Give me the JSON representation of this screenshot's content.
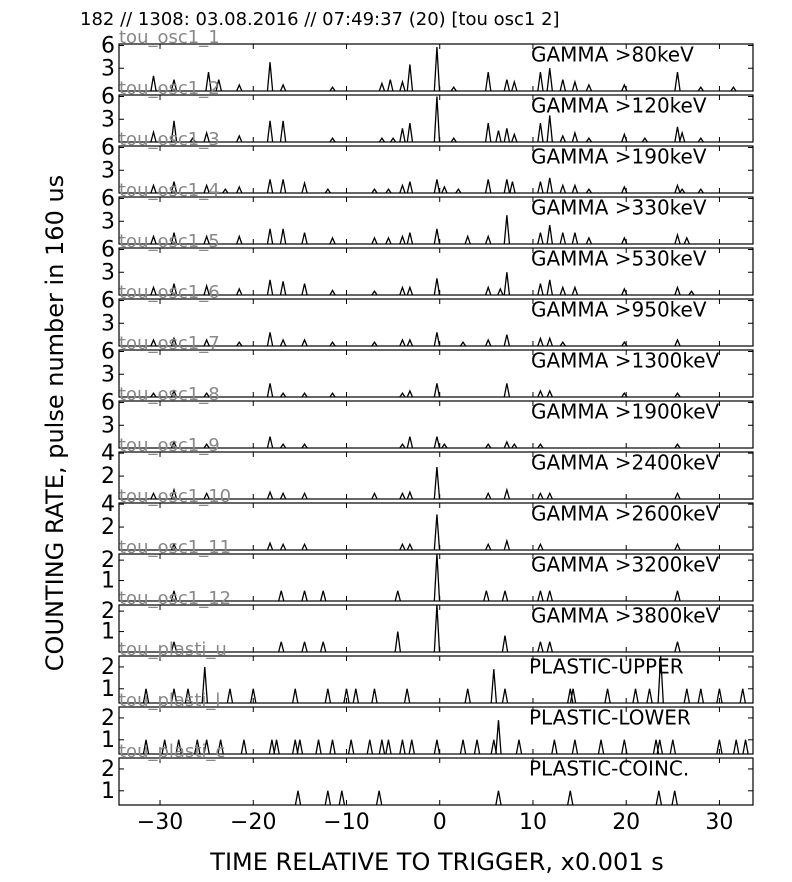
{
  "header": "182 // 1308:   03.08.2016 // 07:49:37 (20)  [tou osc1 2]",
  "y_label": "COUNTING RATE,   pulse number in 160 us",
  "x_label": "TIME RELATIVE TO TRIGGER,   x0.001 s",
  "chart_data": [
    {
      "type": "spike",
      "id": "tou_osc1_1",
      "title": "GAMMA >80keV",
      "xlim": [
        -34.4,
        33.6
      ],
      "xticks": [
        -30,
        -20,
        -10,
        0,
        10,
        20,
        30
      ],
      "ylim": [
        0,
        6.2
      ],
      "yticks": [
        3,
        6
      ],
      "x": [
        -30.7,
        -28.5,
        -24.8,
        -23.7,
        -21.5,
        -18.2,
        -16.8,
        -11.5,
        -6.2,
        -5.3,
        -4,
        -3.2,
        -0.3,
        1.5,
        5.2,
        7.2,
        8,
        10.8,
        11.8,
        13.2,
        14.5,
        16,
        19.8,
        25.5,
        28,
        31.5
      ],
      "values": [
        2,
        1.5,
        2.5,
        1.5,
        0.8,
        3.8,
        0.8,
        0.5,
        1,
        1.5,
        1.2,
        3.5,
        5.8,
        0.5,
        2.5,
        1.5,
        1.2,
        2.5,
        3,
        1.5,
        1.2,
        0.8,
        0.8,
        2.5,
        0.5,
        0.5
      ]
    },
    {
      "type": "spike",
      "id": "tou_osc1_2",
      "title": "GAMMA >120keV",
      "xlim": [
        -34.4,
        33.6
      ],
      "xticks": [
        -30,
        -20,
        -10,
        0,
        10,
        20,
        30
      ],
      "ylim": [
        0,
        6.2
      ],
      "yticks": [
        3,
        6
      ],
      "x": [
        -30.7,
        -28.5,
        -26.5,
        -25,
        -21.5,
        -18.2,
        -16.8,
        -11.5,
        -6.2,
        -5,
        -4,
        -3.2,
        -0.3,
        1.5,
        5.2,
        6.3,
        7.2,
        8,
        10.8,
        11.8,
        13.2,
        14.5,
        16,
        19.8,
        22,
        25.5,
        26,
        28
      ],
      "values": [
        1.3,
        2.8,
        0.5,
        1.2,
        0.8,
        2.8,
        2.8,
        0.5,
        0.5,
        0.5,
        1.8,
        2.5,
        6,
        0.5,
        2.5,
        1.5,
        1.8,
        1,
        2.5,
        3.5,
        0.8,
        1.2,
        0.5,
        1,
        0.5,
        2,
        1.2,
        0.5
      ]
    },
    {
      "type": "spike",
      "id": "tou_osc1_3",
      "title": "GAMMA >190keV",
      "xlim": [
        -34.4,
        33.6
      ],
      "xticks": [
        -30,
        -20,
        -10,
        0,
        10,
        20,
        30
      ],
      "ylim": [
        0,
        6.2
      ],
      "yticks": [
        3,
        6
      ],
      "x": [
        -30.7,
        -28.5,
        -25,
        -23,
        -21.5,
        -18.2,
        -16.8,
        -14.5,
        -12,
        -7,
        -5.5,
        -4,
        -3.2,
        -0.3,
        0.5,
        2,
        5.2,
        7.2,
        7.8,
        10.8,
        11.8,
        13.2,
        14.5,
        16,
        19.8,
        25.5,
        26,
        28
      ],
      "values": [
        1,
        1.5,
        1,
        0.5,
        0.8,
        1.8,
        1.8,
        1.3,
        0.5,
        0.5,
        0.5,
        1,
        1.5,
        1.8,
        0.8,
        0.5,
        1.8,
        1.8,
        1.5,
        1.5,
        2,
        1,
        1,
        0.5,
        0.8,
        1,
        0.5,
        0.5
      ]
    },
    {
      "type": "spike",
      "id": "tou_osc1_4",
      "title": "GAMMA >330keV",
      "xlim": [
        -34.4,
        33.6
      ],
      "xticks": [
        -30,
        -20,
        -10,
        0,
        10,
        20,
        30
      ],
      "ylim": [
        0,
        6.2
      ],
      "yticks": [
        3,
        6
      ],
      "x": [
        -30.7,
        -28.5,
        -25,
        -21.5,
        -18.2,
        -16.8,
        -14.5,
        -11.5,
        -7,
        -5.5,
        -4,
        -3.2,
        -0.3,
        3,
        5.2,
        7.2,
        10.8,
        11.8,
        13.2,
        14.5,
        16,
        19.8,
        25.5,
        26.5
      ],
      "values": [
        1,
        1.5,
        1,
        1,
        2,
        2,
        1.5,
        0.8,
        0.8,
        0.8,
        1,
        1.5,
        2,
        1,
        1,
        3.8,
        1.5,
        2.5,
        1.5,
        1.5,
        0.8,
        0.8,
        1.2,
        0.8
      ]
    },
    {
      "type": "spike",
      "id": "tou_osc1_5",
      "title": "GAMMA >530keV",
      "xlim": [
        -34.4,
        33.6
      ],
      "xticks": [
        -30,
        -20,
        -10,
        0,
        10,
        20,
        30
      ],
      "ylim": [
        0,
        6.2
      ],
      "yticks": [
        3,
        6
      ],
      "x": [
        -30.7,
        -28.5,
        -25,
        -21.5,
        -18.2,
        -16.8,
        -14.5,
        -11.5,
        -7,
        -4,
        -3.2,
        -0.3,
        5.2,
        6.5,
        7.2,
        10.8,
        11.8,
        13.2,
        14.5,
        19.8,
        25.5,
        27
      ],
      "values": [
        1,
        1.5,
        1.2,
        0.8,
        2,
        1.8,
        1.5,
        0.6,
        0.5,
        1,
        1,
        2.2,
        1,
        0.8,
        3,
        1.5,
        2,
        1,
        1,
        0.8,
        1,
        0.5
      ]
    },
    {
      "type": "spike",
      "id": "tou_osc1_6",
      "title": "GAMMA >950keV",
      "xlim": [
        -34.4,
        33.6
      ],
      "xticks": [
        -30,
        -20,
        -10,
        0,
        10,
        20,
        30
      ],
      "ylim": [
        0,
        6.2
      ],
      "yticks": [
        3,
        6
      ],
      "x": [
        -30.7,
        -28.5,
        -25,
        -21.5,
        -18.2,
        -16.8,
        -14.5,
        -11.5,
        -7,
        -4,
        -3.2,
        -0.3,
        2.5,
        5.2,
        7.2,
        10.8,
        11.8,
        13.2,
        19.8,
        25.5
      ],
      "values": [
        0.8,
        1,
        0.8,
        0.5,
        1.8,
        0.8,
        0.8,
        0.5,
        0.5,
        0.8,
        0.8,
        1.8,
        0.5,
        0.8,
        1.5,
        1,
        1,
        0.5,
        0.5,
        0.8
      ]
    },
    {
      "type": "spike",
      "id": "tou_osc1_7",
      "title": "GAMMA >1300keV",
      "xlim": [
        -34.4,
        33.6
      ],
      "xticks": [
        -30,
        -20,
        -10,
        0,
        10,
        20,
        30
      ],
      "ylim": [
        0,
        6.2
      ],
      "yticks": [
        3,
        6
      ],
      "x": [
        -30.7,
        -28.5,
        -25,
        -18.2,
        -16.8,
        -14.5,
        -11.5,
        -4,
        -3.2,
        -0.3,
        7.2,
        10.8,
        11.8,
        19.8,
        25.5
      ],
      "values": [
        0.5,
        0.8,
        0.5,
        1.8,
        0.5,
        0.5,
        0.5,
        0.5,
        0.8,
        1.8,
        1.8,
        0.8,
        0.8,
        0.5,
        0.5
      ]
    },
    {
      "type": "spike",
      "id": "tou_osc1_8",
      "title": "GAMMA >1900keV",
      "xlim": [
        -34.4,
        33.6
      ],
      "xticks": [
        -30,
        -20,
        -10,
        0,
        10,
        20,
        30
      ],
      "ylim": [
        0,
        6.2
      ],
      "yticks": [
        3,
        6
      ],
      "x": [
        -28.5,
        -25,
        -18.2,
        -16.8,
        -14.5,
        -4,
        -3.2,
        -0.3,
        0.5,
        5.2,
        7.2,
        8,
        10.8,
        25.5
      ],
      "values": [
        0.8,
        0.5,
        1.5,
        0.5,
        0.5,
        0.5,
        1.5,
        1.5,
        0.5,
        0.5,
        0.8,
        0.5,
        0.5,
        0.5
      ]
    },
    {
      "type": "spike",
      "id": "tou_osc1_9",
      "title": "GAMMA >2400keV",
      "xlim": [
        -34.4,
        33.6
      ],
      "xticks": [
        -30,
        -20,
        -10,
        0,
        10,
        20,
        30
      ],
      "ylim": [
        0,
        4.1
      ],
      "yticks": [
        2,
        4
      ],
      "x": [
        -30.7,
        -28.5,
        -25,
        -18.2,
        -16.8,
        -14.5,
        -7,
        -4,
        -3.2,
        -0.3,
        5.2,
        7.2,
        10.8,
        11.8,
        25.5
      ],
      "values": [
        0.5,
        0.8,
        0.5,
        0.6,
        0.5,
        0.5,
        0.5,
        0.5,
        0.6,
        2.8,
        0.5,
        0.8,
        0.5,
        0.5,
        0.5
      ]
    },
    {
      "type": "spike",
      "id": "tou_osc1_10",
      "title": "GAMMA >2600keV",
      "xlim": [
        -34.4,
        33.6
      ],
      "xticks": [
        -30,
        -20,
        -10,
        0,
        10,
        20,
        30
      ],
      "ylim": [
        0,
        4.1
      ],
      "yticks": [
        2,
        4
      ],
      "x": [
        -28.5,
        -18.2,
        -16.8,
        -14.5,
        -4,
        -3.2,
        -0.3,
        5.2,
        7.2,
        10.8,
        25.5
      ],
      "values": [
        0.5,
        0.6,
        0.5,
        0.5,
        0.5,
        0.5,
        3.1,
        0.5,
        0.8,
        0.5,
        0.5
      ]
    },
    {
      "type": "spike",
      "id": "tou_osc1_11",
      "title": "GAMMA >3200keV",
      "xlim": [
        -34.4,
        33.6
      ],
      "xticks": [
        -30,
        -20,
        -10,
        0,
        10,
        20,
        30
      ],
      "ylim": [
        0,
        2.3
      ],
      "yticks": [
        1,
        2
      ],
      "x": [
        -28.5,
        -17,
        -14.5,
        -12.5,
        -4.5,
        -0.3,
        5,
        7,
        10.8,
        11.8,
        25.5
      ],
      "values": [
        0.5,
        0.5,
        0.5,
        0.5,
        0.5,
        2.3,
        0.5,
        0.5,
        0.5,
        0.5,
        0.5
      ]
    },
    {
      "type": "spike",
      "id": "tou_osc1_12",
      "title": "GAMMA >3800keV",
      "xlim": [
        -34.4,
        33.6
      ],
      "xticks": [
        -30,
        -20,
        -10,
        0,
        10,
        20,
        30
      ],
      "ylim": [
        0,
        2.3
      ],
      "yticks": [
        1,
        2
      ],
      "x": [
        -28.5,
        -17,
        -14.5,
        -12.5,
        -4.5,
        -0.3,
        7,
        10.8,
        11.8,
        25.5
      ],
      "values": [
        0.5,
        0.5,
        0.5,
        0.5,
        1,
        2.3,
        0.8,
        0.5,
        0.5,
        0.5
      ]
    },
    {
      "type": "spike",
      "id": "tou_plasti_u",
      "title": "PLASTIC-UPPER",
      "xlim": [
        -34.4,
        33.6
      ],
      "xticks": [
        -30,
        -20,
        -10,
        0,
        10,
        20,
        30
      ],
      "ylim": [
        0.35,
        2.5
      ],
      "yticks": [
        1,
        2
      ],
      "x": [
        -31.5,
        -28.5,
        -27,
        -25.2,
        -22.5,
        -20,
        -15.5,
        -12,
        -10,
        -9,
        -7,
        -3.5,
        3,
        5.8,
        7,
        14,
        14.3,
        18,
        21,
        22.5,
        23.7,
        26.5,
        28,
        30,
        32.5
      ],
      "values": [
        1,
        1,
        1,
        2,
        1,
        1,
        1,
        1,
        1,
        1,
        1,
        1,
        1,
        1.9,
        1,
        1,
        1,
        1,
        1,
        1,
        2.5,
        1,
        1,
        1,
        1
      ]
    },
    {
      "type": "spike",
      "id": "tou_plasti_l",
      "title": "PLASTIC-LOWER",
      "xlim": [
        -34.4,
        33.6
      ],
      "xticks": [
        -30,
        -20,
        -10,
        0,
        10,
        20,
        30
      ],
      "ylim": [
        0.35,
        2.5
      ],
      "yticks": [
        1,
        2
      ],
      "x": [
        -31.5,
        -29.5,
        -28,
        -26,
        -25,
        -23.5,
        -21,
        -18,
        -17.5,
        -15.5,
        -15,
        -13,
        -11.5,
        -9.5,
        -7.5,
        -6.2,
        -5.5,
        -4,
        -3,
        -0.3,
        2.5,
        4,
        5.8,
        6.3,
        8.5,
        12.3,
        14.5,
        17.3,
        19.8,
        23.2,
        23.6,
        25,
        30,
        31.8,
        32.8
      ],
      "values": [
        1,
        1,
        1,
        1,
        1,
        1,
        1,
        1,
        1,
        1,
        1,
        1,
        1,
        1,
        1,
        1,
        1,
        1,
        1,
        1,
        1,
        1,
        1,
        1.9,
        1,
        1,
        1,
        1,
        1,
        1,
        1,
        1,
        1,
        1,
        1
      ]
    },
    {
      "type": "spike",
      "id": "tou_plasti_c",
      "title": "PLASTIC-COINC.",
      "xlim": [
        -34.4,
        33.6
      ],
      "xticks": [
        {
          "value": -30,
          "label": "−30"
        },
        {
          "value": -20,
          "label": "−20"
        },
        {
          "value": -10,
          "label": "−10"
        },
        0,
        10,
        20,
        30
      ],
      "ylim": [
        0.35,
        2.5
      ],
      "yticks": [
        1,
        2
      ],
      "x": [
        -15.2,
        -12,
        -10.5,
        -6.5,
        6.3,
        14,
        23.5,
        25.2
      ],
      "values": [
        1,
        1,
        1,
        1,
        1,
        1,
        1,
        1
      ]
    }
  ]
}
